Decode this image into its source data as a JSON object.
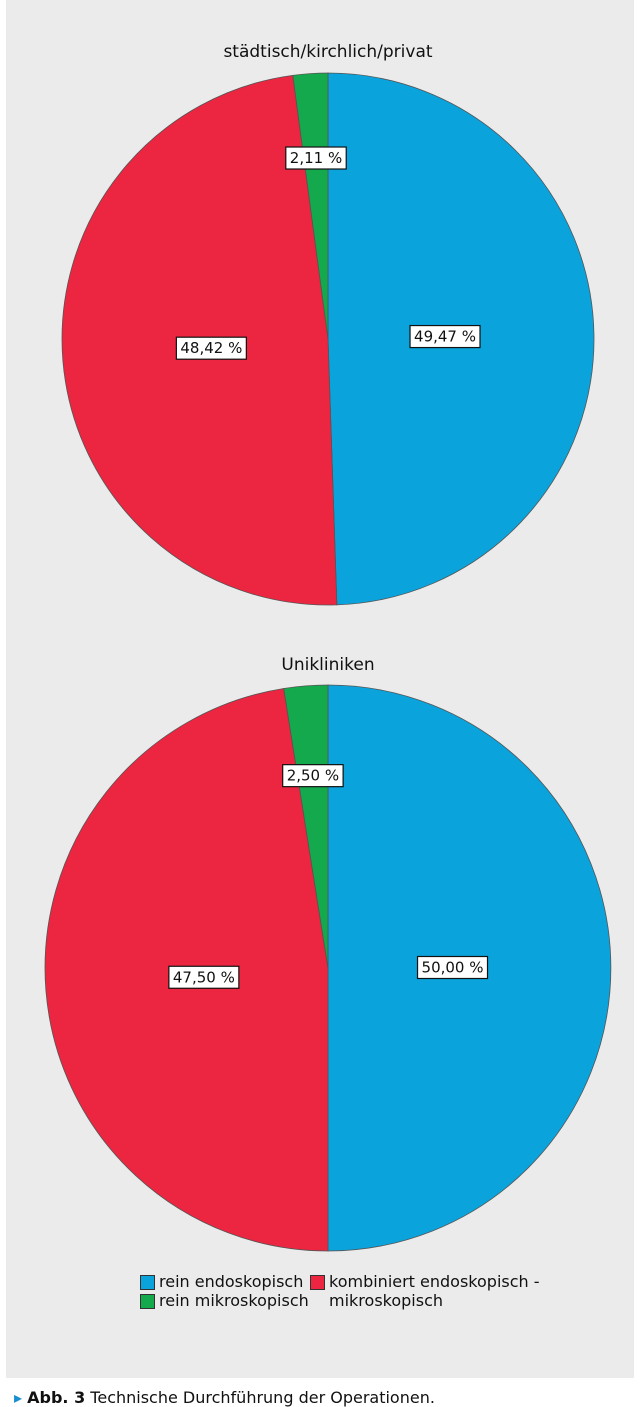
{
  "chart_data": [
    {
      "type": "pie",
      "title": "städtisch/kirchlich/privat",
      "categories": [
        "rein endoskopisch",
        "kombiniert endoskopisch - mikroskopisch",
        "rein mikroskopisch"
      ],
      "values": [
        49.47,
        48.42,
        2.11
      ],
      "value_labels": [
        "49,47 %",
        "48,42 %",
        "2,11 %"
      ],
      "colors": [
        "#0aa3dc",
        "#ec2540",
        "#14a94c"
      ]
    },
    {
      "type": "pie",
      "title": "Unikliniken",
      "categories": [
        "rein endoskopisch",
        "kombiniert endoskopisch - mikroskopisch",
        "rein mikroskopisch"
      ],
      "values": [
        50.0,
        47.5,
        2.5
      ],
      "value_labels": [
        "50,00 %",
        "47,50 %",
        "2,50 %"
      ],
      "colors": [
        "#0aa3dc",
        "#ec2540",
        "#14a94c"
      ]
    }
  ],
  "caption": {
    "label": "Abb. 3",
    "text": "Technische Durchführung der Operationen."
  }
}
